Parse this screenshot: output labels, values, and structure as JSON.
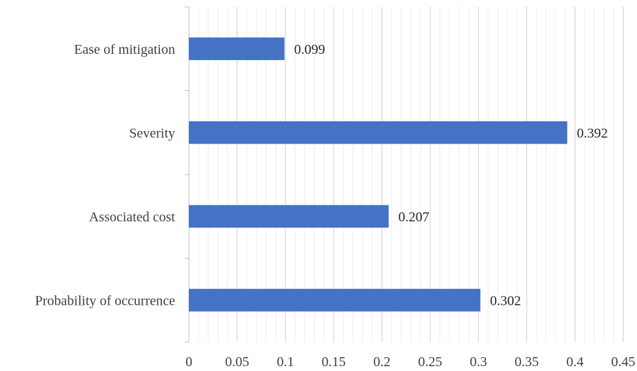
{
  "chart_data": {
    "type": "bar",
    "orientation": "horizontal",
    "title": "",
    "xlabel": "",
    "ylabel": "",
    "categories": [
      "Ease of mitigation",
      "Severity",
      "Associated cost",
      "Probability of occurrence"
    ],
    "values": [
      0.099,
      0.392,
      0.207,
      0.302
    ],
    "data_labels": [
      "0.099",
      "0.392",
      "0.207",
      "0.302"
    ],
    "xlim": [
      0,
      0.45
    ],
    "xticks": [
      0,
      0.05,
      0.1,
      0.15,
      0.2,
      0.25,
      0.3,
      0.35,
      0.4,
      0.45
    ],
    "xtick_labels": [
      "0",
      "0.05",
      "0.1",
      "0.15",
      "0.2",
      "0.25",
      "0.3",
      "0.35",
      "0.4",
      "0.45"
    ],
    "minor_gridlines_per_major": 5,
    "grid": true,
    "legend": "none",
    "colors": {
      "bar": "#4472C4",
      "major_grid": "#D9D9D9",
      "minor_grid": "#EBEBEB",
      "axis": "#BFBFBF",
      "text": "#404040"
    }
  }
}
